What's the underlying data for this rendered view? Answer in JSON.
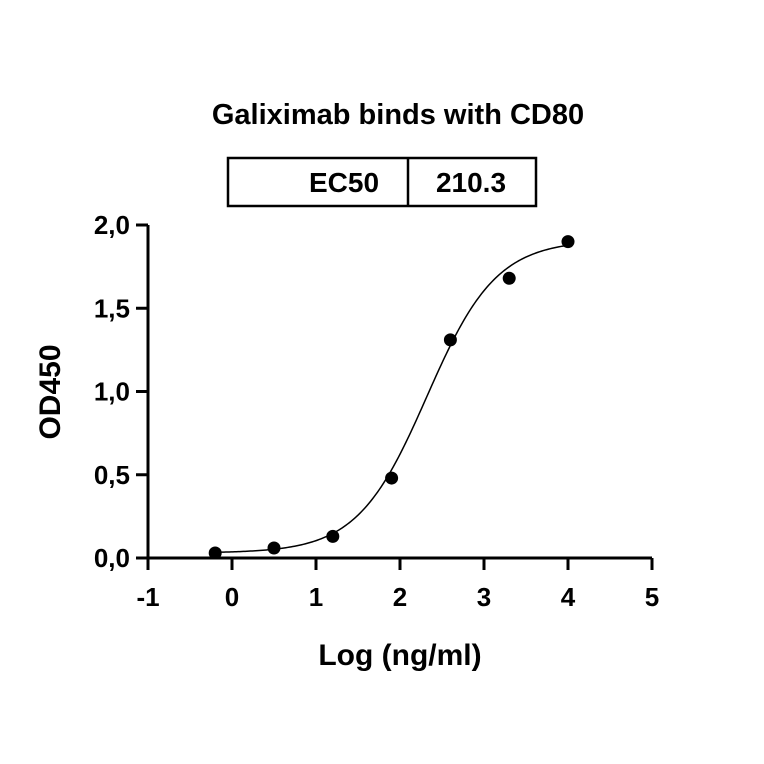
{
  "chart_data": {
    "type": "scatter",
    "title": "Galiximab binds with CD80",
    "xlabel": "Log (ng/ml)",
    "ylabel": "OD450",
    "xlim": [
      -1,
      5
    ],
    "ylim": [
      0,
      2
    ],
    "x_ticks": [
      "-1",
      "0",
      "1",
      "2",
      "3",
      "4",
      "5"
    ],
    "y_ticks": [
      "0,0",
      "0,5",
      "1,0",
      "1,5",
      "2,0"
    ],
    "ec50_table": {
      "label": "EC50",
      "value": "210.3"
    },
    "series": [
      {
        "points": [
          {
            "x": -0.2,
            "y": 0.03
          },
          {
            "x": 0.5,
            "y": 0.06
          },
          {
            "x": 1.2,
            "y": 0.13
          },
          {
            "x": 1.9,
            "y": 0.48
          },
          {
            "x": 2.6,
            "y": 1.31
          },
          {
            "x": 3.3,
            "y": 1.68
          },
          {
            "x": 4.0,
            "y": 1.9
          }
        ]
      }
    ],
    "fit_curve": {
      "model": "4PL",
      "bottom": 0.03,
      "top": 1.91,
      "logEC50": 2.32,
      "hill": 1.05,
      "x_range": [
        -0.2,
        4.0
      ]
    },
    "grid": false,
    "legend": "none"
  }
}
